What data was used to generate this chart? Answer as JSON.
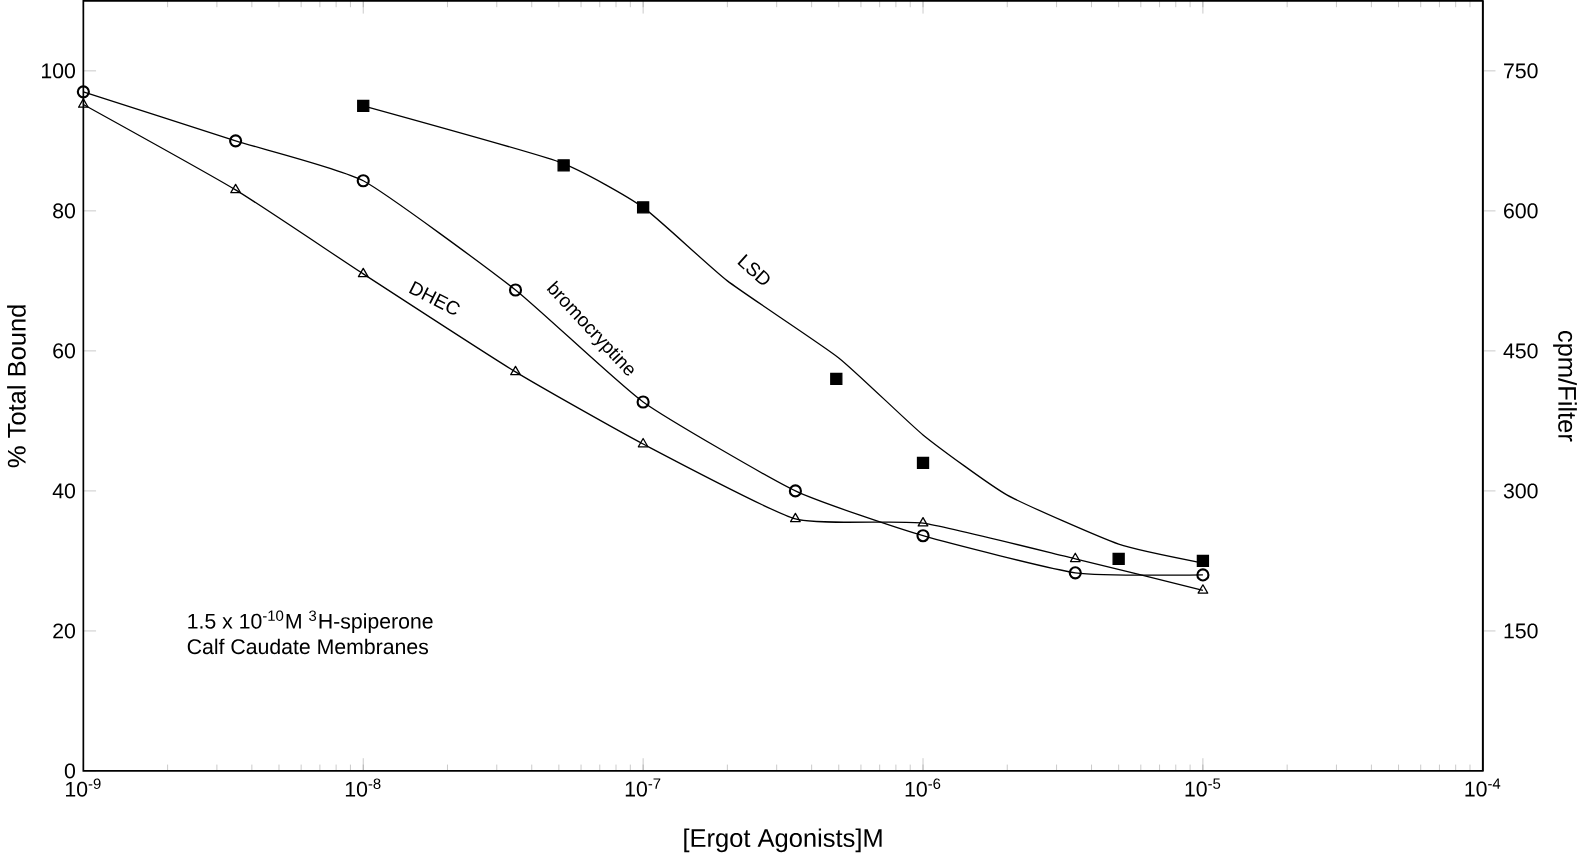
{
  "chart_data": {
    "type": "line",
    "xlabel": "[Ergot Agonists]M",
    "ylabel": "% Total Bound",
    "y2label": "cpm/Filter",
    "log": "x",
    "xlim": [
      1e-09,
      0.0001
    ],
    "ylim": [
      0,
      110
    ],
    "y2lim": [
      0,
      825
    ],
    "xticks": [
      {
        "value": 1e-09,
        "label": "10$^{-9}$"
      },
      {
        "value": 1e-08,
        "label": "10$^{-8}$"
      },
      {
        "value": 1e-07,
        "label": "10$^{-7}$"
      },
      {
        "value": 1e-06,
        "label": "10$^{-6}$"
      },
      {
        "value": 1e-05,
        "label": "10$^{-5}$"
      },
      {
        "value": 0.0001,
        "label": "10$^{-4}$"
      }
    ],
    "yticks": [
      0,
      20,
      40,
      60,
      80,
      100
    ],
    "y2ticks": [
      150,
      300,
      450,
      600,
      750
    ],
    "grid": false,
    "annotations": [
      "1.5 x 10$^{-10}$M $^{3}$H-spiperone",
      "Calf Caudate Membranes"
    ],
    "series": [
      {
        "name": "LSD",
        "marker": "none",
        "color": "#000000",
        "x": [
          1e-08,
          5e-08,
          1e-07,
          2e-07,
          5e-07,
          1e-06,
          2e-06,
          5e-06,
          1e-05
        ],
        "values": [
          95,
          87,
          80.5,
          70,
          59,
          48,
          39.4,
          32.4,
          29.7
        ]
      },
      {
        "type": "scatter",
        "marker": "square",
        "color": "#000000",
        "x": [
          1e-08,
          5.2e-08,
          1e-07,
          4.9e-07,
          1e-06,
          5e-06,
          1e-05
        ],
        "values": [
          95,
          86.5,
          80.5,
          56,
          44,
          30.3,
          30
        ]
      },
      {
        "name": "bromocryptine",
        "marker": "circle",
        "color": "#000000",
        "x": [
          1e-09,
          3.5e-09,
          1e-08,
          3.5e-08,
          1e-07,
          3.5e-07,
          1e-06,
          3.5e-06,
          1e-05
        ],
        "values": [
          97,
          90,
          84.3,
          68.7,
          52.7,
          40,
          33.6,
          28.3,
          28
        ]
      },
      {
        "name": "DHEC",
        "marker": "triangle",
        "color": "#000000",
        "x": [
          1e-09,
          3.5e-09,
          1e-08,
          3.5e-08,
          1e-07,
          3.5e-07,
          1e-06,
          3.5e-06,
          1e-05
        ],
        "values": [
          95.2,
          83,
          71,
          57,
          46.7,
          36,
          35.4,
          30.3,
          25.8
        ]
      }
    ]
  }
}
